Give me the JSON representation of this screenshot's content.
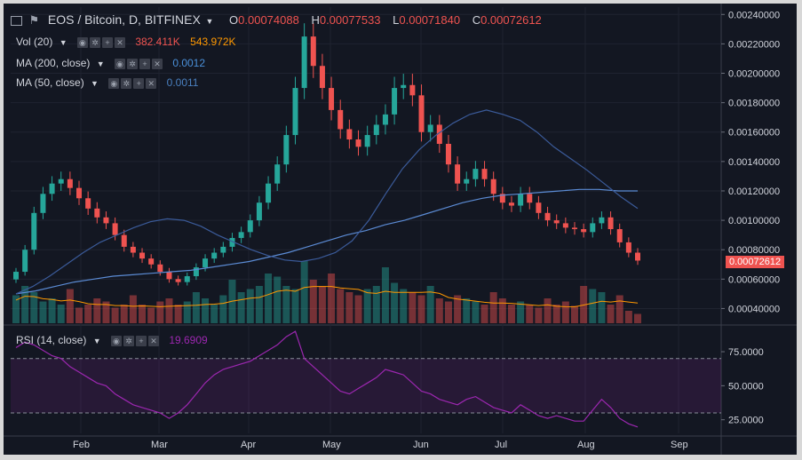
{
  "header": {
    "symbol": "EOS / Bitcoin, D, BITFINEX",
    "o_label": "O",
    "o": "0.00074088",
    "h_label": "H",
    "h": "0.00077533",
    "l_label": "L",
    "l": "0.00071840",
    "c_label": "C",
    "c": "0.00072612"
  },
  "indicators": [
    {
      "label": "Vol (20)",
      "v1": "382.411K",
      "v1_color": "#ef5350",
      "v2": "543.972K",
      "v2_color": "#ff9800"
    },
    {
      "label": "MA (200, close)",
      "v1": "0.0012",
      "v1_color": "#4a90d9"
    },
    {
      "label": "MA (50, close)",
      "v1": "0.0011",
      "v1_color": "#3b5b9a"
    }
  ],
  "rsi": {
    "label": "RSI (14, close)",
    "value": "19.6909",
    "value_color": "#9c27b0"
  },
  "last_price": "0.00072612",
  "colors": {
    "up": "#26a69a",
    "down": "#ef5350",
    "ma200": "#5b8bd4",
    "ma50": "#3b5b9a",
    "vol_ma": "#ff9800",
    "rsi": "#9c27b0"
  },
  "chart_data": {
    "type": "candlestick",
    "price_axis": {
      "ticks": [
        "0.00240000",
        "0.00220000",
        "0.00200000",
        "0.00180000",
        "0.00160000",
        "0.00140000",
        "0.00120000",
        "0.00100000",
        "0.00080000",
        "0.00060000",
        "0.00040000"
      ],
      "range": [
        0.0003,
        0.00245
      ]
    },
    "rsi_axis": {
      "ticks": [
        "75.0000",
        "50.0000",
        "25.0000"
      ],
      "band": [
        30,
        70
      ],
      "range": [
        15,
        92
      ]
    },
    "time_axis": [
      "Feb",
      "Mar",
      "Apr",
      "May",
      "Jun",
      "Jul",
      "Aug",
      "Sep"
    ],
    "close_series": [
      0.00065,
      0.0008,
      0.00105,
      0.00118,
      0.00125,
      0.00128,
      0.00122,
      0.00115,
      0.00108,
      0.00102,
      0.00098,
      0.0009,
      0.00082,
      0.00078,
      0.00074,
      0.0007,
      0.00065,
      0.0006,
      0.00058,
      0.00062,
      0.00068,
      0.00074,
      0.00078,
      0.00082,
      0.00088,
      0.00092,
      0.001,
      0.00112,
      0.00125,
      0.00138,
      0.00158,
      0.0019,
      0.00225,
      0.00205,
      0.0019,
      0.00175,
      0.00162,
      0.00155,
      0.0015,
      0.00158,
      0.00165,
      0.00172,
      0.0019,
      0.00192,
      0.00185,
      0.0016,
      0.00165,
      0.00152,
      0.00138,
      0.00125,
      0.00128,
      0.00135,
      0.00128,
      0.00118,
      0.00112,
      0.0011,
      0.00118,
      0.00112,
      0.00105,
      0.001,
      0.00098,
      0.00095,
      0.00094,
      0.00092,
      0.00098,
      0.00102,
      0.00094,
      0.00085,
      0.00078,
      0.00072612
    ],
    "ma50_series": [
      0.0005,
      0.00055,
      0.00062,
      0.0007,
      0.00078,
      0.00085,
      0.0009,
      0.00095,
      0.00099,
      0.00101,
      0.001,
      0.00096,
      0.0009,
      0.00085,
      0.0008,
      0.00076,
      0.00073,
      0.00072,
      0.00074,
      0.00078,
      0.00086,
      0.001,
      0.00118,
      0.00135,
      0.00148,
      0.00158,
      0.00166,
      0.00172,
      0.00175,
      0.00172,
      0.00168,
      0.0016,
      0.0015,
      0.00142,
      0.00134,
      0.00125,
      0.00116,
      0.00108
    ],
    "ma200_series": [
      0.0005,
      0.00052,
      0.00055,
      0.00058,
      0.0006,
      0.00062,
      0.00063,
      0.00064,
      0.00065,
      0.00066,
      0.00068,
      0.0007,
      0.00072,
      0.00075,
      0.00078,
      0.00082,
      0.00086,
      0.0009,
      0.00093,
      0.00097,
      0.001,
      0.00104,
      0.00108,
      0.00112,
      0.00115,
      0.00117,
      0.00118,
      0.00119,
      0.0012,
      0.00121,
      0.00121,
      0.0012,
      0.0012
    ],
    "volume_series": [
      0.45,
      0.6,
      0.5,
      0.35,
      0.4,
      0.3,
      0.55,
      0.25,
      0.3,
      0.4,
      0.35,
      0.25,
      0.3,
      0.45,
      0.3,
      0.25,
      0.35,
      0.4,
      0.3,
      0.35,
      0.5,
      0.4,
      0.3,
      0.45,
      0.7,
      0.5,
      0.55,
      0.6,
      0.8,
      0.75,
      0.6,
      0.55,
      1.0,
      0.7,
      0.6,
      0.8,
      0.55,
      0.5,
      0.45,
      0.55,
      0.6,
      0.9,
      0.65,
      0.55,
      0.5,
      0.45,
      0.6,
      0.4,
      0.35,
      0.45,
      0.4,
      0.35,
      0.3,
      0.5,
      0.4,
      0.3,
      0.35,
      0.3,
      0.25,
      0.4,
      0.3,
      0.35,
      0.28,
      0.6,
      0.55,
      0.5,
      0.3,
      0.45,
      0.2,
      0.15
    ],
    "rsi_series": [
      78,
      82,
      80,
      76,
      72,
      70,
      64,
      60,
      56,
      52,
      50,
      44,
      40,
      36,
      34,
      32,
      30,
      26,
      30,
      36,
      44,
      52,
      58,
      62,
      64,
      66,
      68,
      72,
      76,
      80,
      86,
      90,
      70,
      64,
      58,
      52,
      46,
      44,
      48,
      52,
      56,
      62,
      60,
      58,
      52,
      46,
      44,
      40,
      38,
      36,
      40,
      42,
      38,
      34,
      32,
      30,
      36,
      32,
      28,
      26,
      28,
      26,
      24,
      24,
      32,
      40,
      34,
      26,
      22,
      19.6909
    ]
  }
}
